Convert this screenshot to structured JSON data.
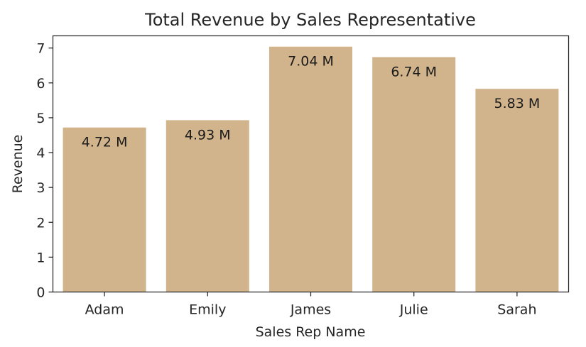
{
  "chart_data": {
    "type": "bar",
    "title": "Total Revenue by Sales Representative",
    "xlabel": "Sales Rep Name",
    "ylabel": "Revenue",
    "categories": [
      "Adam",
      "Emily",
      "James",
      "Julie",
      "Sarah"
    ],
    "values": [
      4.72,
      4.93,
      7.04,
      6.74,
      5.83
    ],
    "data_labels": [
      "4.72 M",
      "4.93 M",
      "7.04 M",
      "6.74 M",
      "5.83 M"
    ],
    "y_ticks": [
      0,
      1,
      2,
      3,
      4,
      5,
      6,
      7
    ],
    "ylim": [
      0,
      7.35
    ],
    "grid": false,
    "bar_color": "#d2b48c"
  }
}
